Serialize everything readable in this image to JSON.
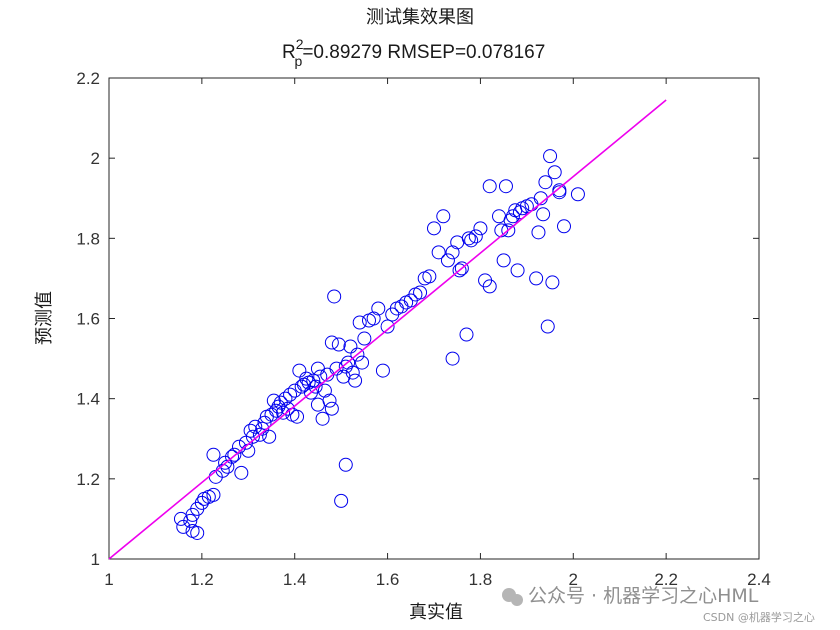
{
  "chart_data": {
    "type": "scatter",
    "title": "测试集效果图",
    "subtitle": {
      "r_prefix": "R",
      "r_sup": "2",
      "r_sub": "p",
      "rest": "=0.89279  RMSEP=0.078167"
    },
    "xlabel": "真实值",
    "ylabel": "预测值",
    "xlim": [
      1,
      2.4
    ],
    "ylim": [
      1,
      2.2
    ],
    "xticks": [
      1,
      1.2,
      1.4,
      1.6,
      1.8,
      2,
      2.2,
      2.4
    ],
    "yticks": [
      1,
      1.2,
      1.4,
      1.6,
      1.8,
      2,
      2.2
    ],
    "xtick_labels": [
      "1",
      "1.2",
      "1.4",
      "1.6",
      "1.8",
      "2",
      "2.2",
      "2.4"
    ],
    "ytick_labels": [
      "1",
      "1.2",
      "1.4",
      "1.6",
      "1.8",
      "2",
      "2.2"
    ],
    "grid": false,
    "marker_color": "#0000ee",
    "line_color": "#ee00ee",
    "reference_line": {
      "x": [
        1,
        2.2
      ],
      "y": [
        1,
        2.145
      ]
    },
    "points": [
      [
        1.155,
        1.1
      ],
      [
        1.16,
        1.08
      ],
      [
        1.175,
        1.095
      ],
      [
        1.18,
        1.07
      ],
      [
        1.18,
        1.11
      ],
      [
        1.19,
        1.125
      ],
      [
        1.19,
        1.065
      ],
      [
        1.2,
        1.14
      ],
      [
        1.205,
        1.15
      ],
      [
        1.215,
        1.155
      ],
      [
        1.225,
        1.16
      ],
      [
        1.225,
        1.26
      ],
      [
        1.23,
        1.205
      ],
      [
        1.245,
        1.22
      ],
      [
        1.25,
        1.24
      ],
      [
        1.255,
        1.23
      ],
      [
        1.265,
        1.255
      ],
      [
        1.27,
        1.26
      ],
      [
        1.28,
        1.28
      ],
      [
        1.285,
        1.215
      ],
      [
        1.295,
        1.29
      ],
      [
        1.3,
        1.27
      ],
      [
        1.305,
        1.32
      ],
      [
        1.31,
        1.305
      ],
      [
        1.315,
        1.33
      ],
      [
        1.325,
        1.31
      ],
      [
        1.33,
        1.325
      ],
      [
        1.335,
        1.34
      ],
      [
        1.34,
        1.355
      ],
      [
        1.345,
        1.305
      ],
      [
        1.35,
        1.36
      ],
      [
        1.355,
        1.395
      ],
      [
        1.36,
        1.37
      ],
      [
        1.365,
        1.38
      ],
      [
        1.37,
        1.39
      ],
      [
        1.375,
        1.365
      ],
      [
        1.38,
        1.4
      ],
      [
        1.385,
        1.375
      ],
      [
        1.39,
        1.41
      ],
      [
        1.395,
        1.36
      ],
      [
        1.4,
        1.42
      ],
      [
        1.405,
        1.355
      ],
      [
        1.41,
        1.47
      ],
      [
        1.415,
        1.43
      ],
      [
        1.42,
        1.435
      ],
      [
        1.425,
        1.45
      ],
      [
        1.43,
        1.44
      ],
      [
        1.435,
        1.415
      ],
      [
        1.44,
        1.445
      ],
      [
        1.445,
        1.43
      ],
      [
        1.45,
        1.475
      ],
      [
        1.45,
        1.385
      ],
      [
        1.455,
        1.455
      ],
      [
        1.46,
        1.35
      ],
      [
        1.465,
        1.42
      ],
      [
        1.47,
        1.46
      ],
      [
        1.475,
        1.395
      ],
      [
        1.48,
        1.375
      ],
      [
        1.48,
        1.54
      ],
      [
        1.485,
        1.655
      ],
      [
        1.49,
        1.475
      ],
      [
        1.495,
        1.535
      ],
      [
        1.5,
        1.145
      ],
      [
        1.505,
        1.455
      ],
      [
        1.51,
        1.48
      ],
      [
        1.51,
        1.235
      ],
      [
        1.515,
        1.49
      ],
      [
        1.52,
        1.53
      ],
      [
        1.525,
        1.465
      ],
      [
        1.53,
        1.445
      ],
      [
        1.535,
        1.51
      ],
      [
        1.54,
        1.59
      ],
      [
        1.545,
        1.49
      ],
      [
        1.55,
        1.55
      ],
      [
        1.56,
        1.595
      ],
      [
        1.57,
        1.6
      ],
      [
        1.58,
        1.625
      ],
      [
        1.59,
        1.47
      ],
      [
        1.6,
        1.58
      ],
      [
        1.61,
        1.61
      ],
      [
        1.62,
        1.625
      ],
      [
        1.63,
        1.63
      ],
      [
        1.64,
        1.64
      ],
      [
        1.65,
        1.645
      ],
      [
        1.66,
        1.66
      ],
      [
        1.67,
        1.665
      ],
      [
        1.68,
        1.7
      ],
      [
        1.69,
        1.705
      ],
      [
        1.7,
        1.825
      ],
      [
        1.71,
        1.765
      ],
      [
        1.72,
        1.855
      ],
      [
        1.73,
        1.745
      ],
      [
        1.74,
        1.5
      ],
      [
        1.74,
        1.765
      ],
      [
        1.75,
        1.79
      ],
      [
        1.755,
        1.72
      ],
      [
        1.76,
        1.725
      ],
      [
        1.77,
        1.56
      ],
      [
        1.775,
        1.8
      ],
      [
        1.78,
        1.795
      ],
      [
        1.79,
        1.805
      ],
      [
        1.8,
        1.825
      ],
      [
        1.81,
        1.695
      ],
      [
        1.82,
        1.68
      ],
      [
        1.82,
        1.93
      ],
      [
        1.84,
        1.855
      ],
      [
        1.845,
        1.82
      ],
      [
        1.85,
        1.745
      ],
      [
        1.855,
        1.93
      ],
      [
        1.86,
        1.82
      ],
      [
        1.865,
        1.845
      ],
      [
        1.87,
        1.855
      ],
      [
        1.875,
        1.87
      ],
      [
        1.88,
        1.72
      ],
      [
        1.885,
        1.865
      ],
      [
        1.89,
        1.875
      ],
      [
        1.9,
        1.88
      ],
      [
        1.91,
        1.885
      ],
      [
        1.92,
        1.7
      ],
      [
        1.925,
        1.815
      ],
      [
        1.93,
        1.9
      ],
      [
        1.935,
        1.86
      ],
      [
        1.94,
        1.94
      ],
      [
        1.945,
        1.58
      ],
      [
        1.95,
        2.005
      ],
      [
        1.955,
        1.69
      ],
      [
        1.96,
        1.965
      ],
      [
        1.97,
        1.915
      ],
      [
        1.97,
        1.92
      ],
      [
        1.98,
        1.83
      ],
      [
        2.01,
        1.91
      ]
    ]
  },
  "watermark": {
    "main": "公众号 · 机器学习之心HML",
    "small": "CSDN @机器学习之心",
    "logo_color": "#b5b5b5"
  }
}
